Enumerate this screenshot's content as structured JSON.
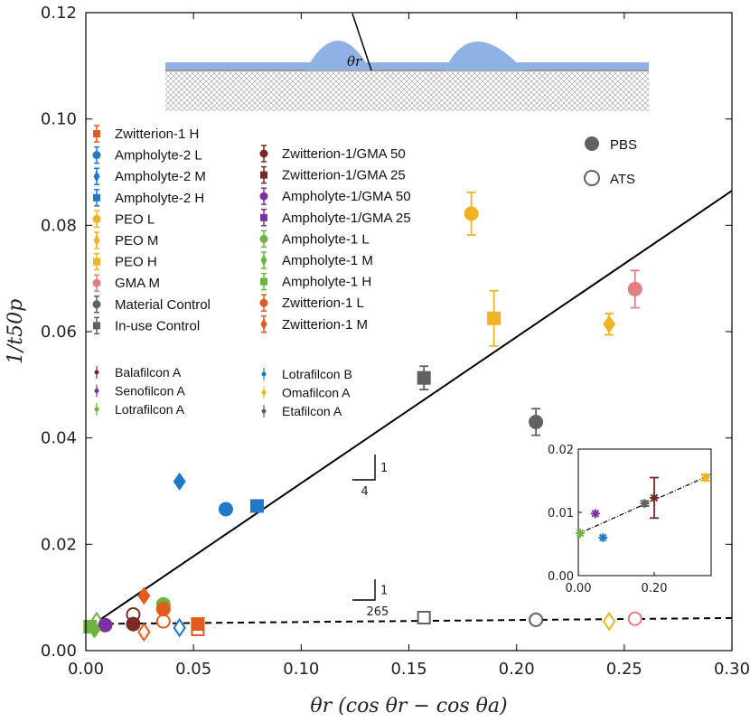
{
  "chart_data": {
    "type": "scatter",
    "xlabel": "θr (cos θr − cos θa)",
    "ylabel": "1/t50p",
    "xlim": [
      0,
      0.3
    ],
    "ylim": [
      0,
      0.12
    ],
    "xticks": [
      "0.00",
      "0.05",
      "0.10",
      "0.15",
      "0.20",
      "0.25",
      "0.30"
    ],
    "yticks": [
      "0.00",
      "0.02",
      "0.04",
      "0.06",
      "0.08",
      "0.10",
      "0.12"
    ],
    "colors": {
      "zwit1": "#e35a1e",
      "ampho2": "#1f78c8",
      "peo": "#f0b323",
      "gma": "#e08080",
      "control": "#616161",
      "zg": "#7a2a24",
      "ag": "#7b2fa1",
      "ampho1": "#6cb33f",
      "bala": "#7a2a24",
      "seno": "#7b2fa1",
      "lotraA": "#6cb33f",
      "lotraB": "#1f78c8",
      "oma": "#f0b323",
      "eta": "#616161"
    },
    "legend_col1": [
      {
        "label": "Zwitterion-1 H",
        "color": "#e35a1e",
        "shape": "square"
      },
      {
        "label": "Ampholyte-2 L",
        "color": "#1f78c8",
        "shape": "circle"
      },
      {
        "label": "Ampholyte-2 M",
        "color": "#1f78c8",
        "shape": "diamond"
      },
      {
        "label": "Ampholyte-2 H",
        "color": "#1f78c8",
        "shape": "square"
      },
      {
        "label": "PEO L",
        "color": "#f0b323",
        "shape": "circle"
      },
      {
        "label": "PEO M",
        "color": "#f0b323",
        "shape": "diamond"
      },
      {
        "label": "PEO H",
        "color": "#f0b323",
        "shape": "square"
      },
      {
        "label": "GMA M",
        "color": "#e08080",
        "shape": "circle"
      },
      {
        "label": "Material Control",
        "color": "#616161",
        "shape": "circle"
      },
      {
        "label": "In-use Control",
        "color": "#616161",
        "shape": "square"
      }
    ],
    "legend_col2": [
      {
        "label": "Zwitterion-1/GMA 50",
        "color": "#7a2a24",
        "shape": "circle"
      },
      {
        "label": "Zwitterion-1/GMA 25",
        "color": "#7a2a24",
        "shape": "square"
      },
      {
        "label": "Ampholyte-1/GMA 50",
        "color": "#7b2fa1",
        "shape": "circle"
      },
      {
        "label": "Ampholyte-1/GMA 25",
        "color": "#7b2fa1",
        "shape": "square"
      },
      {
        "label": "Ampholyte-1 L",
        "color": "#6cb33f",
        "shape": "circle"
      },
      {
        "label": "Ampholyte-1 M",
        "color": "#6cb33f",
        "shape": "diamond"
      },
      {
        "label": "Ampholyte-1 H",
        "color": "#6cb33f",
        "shape": "square"
      },
      {
        "label": "Zwitterion-1 L",
        "color": "#e35a1e",
        "shape": "circle"
      },
      {
        "label": "Zwitterion-1 M",
        "color": "#e35a1e",
        "shape": "diamond"
      }
    ],
    "legend_lenses_col1": [
      {
        "label": "Balafilcon A",
        "color": "#7a2a24"
      },
      {
        "label": "Senofilcon A",
        "color": "#7b2fa1"
      },
      {
        "label": "Lotrafilcon A",
        "color": "#6cb33f"
      }
    ],
    "legend_lenses_col2": [
      {
        "label": "Lotrafilcon B",
        "color": "#1f78c8"
      },
      {
        "label": "Omafilcon A",
        "color": "#f0b323"
      },
      {
        "label": "Etafilcon A",
        "color": "#616161"
      }
    ],
    "medium_legend": [
      {
        "label": "PBS",
        "filled": true
      },
      {
        "label": "ATS",
        "filled": false
      }
    ],
    "pbs_points": [
      {
        "name": "Ampholyte-2 M",
        "x": 0.0435,
        "y": 0.0318,
        "color": "#1f78c8",
        "shape": "diamond"
      },
      {
        "name": "Ampholyte-2 L",
        "x": 0.065,
        "y": 0.0266,
        "color": "#1f78c8",
        "shape": "circle"
      },
      {
        "name": "Ampholyte-2 H",
        "x": 0.0795,
        "y": 0.0272,
        "color": "#1f78c8",
        "shape": "square"
      },
      {
        "name": "In-use Control",
        "x": 0.157,
        "y": 0.0513,
        "err": 0.0022,
        "color": "#616161",
        "shape": "square"
      },
      {
        "name": "PEO L",
        "x": 0.179,
        "y": 0.0822,
        "err": 0.004,
        "color": "#f0b323",
        "shape": "circle"
      },
      {
        "name": "PEO H",
        "x": 0.1895,
        "y": 0.0625,
        "err": 0.0052,
        "color": "#f0b323",
        "shape": "square"
      },
      {
        "name": "Material Control",
        "x": 0.209,
        "y": 0.043,
        "err": 0.0025,
        "color": "#616161",
        "shape": "circle"
      },
      {
        "name": "PEO M",
        "x": 0.243,
        "y": 0.0614,
        "err": 0.002,
        "color": "#f0b323",
        "shape": "diamond"
      },
      {
        "name": "GMA M",
        "x": 0.255,
        "y": 0.068,
        "err": 0.0035,
        "color": "#e08080",
        "shape": "circle"
      },
      {
        "name": "Zwitterion-1 M",
        "x": 0.027,
        "y": 0.0103,
        "color": "#e35a1e",
        "shape": "diamond"
      },
      {
        "name": "Ampholyte-1 L",
        "x": 0.036,
        "y": 0.0087,
        "color": "#6cb33f",
        "shape": "circle"
      },
      {
        "name": "Zwitterion-1 L",
        "x": 0.036,
        "y": 0.0078,
        "color": "#e35a1e",
        "shape": "circle"
      },
      {
        "name": "Zwitterion-1/GMA 50",
        "x": 0.022,
        "y": 0.005,
        "color": "#7a2a24",
        "shape": "circle"
      },
      {
        "name": "Ampholyte-1/GMA 50",
        "x": 0.009,
        "y": 0.0048,
        "color": "#7b2fa1",
        "shape": "circle"
      },
      {
        "name": "Zwitterion-1 H",
        "x": 0.052,
        "y": 0.005,
        "color": "#e35a1e",
        "shape": "square"
      },
      {
        "name": "Ampholyte-1 M",
        "x": 0.004,
        "y": 0.004,
        "color": "#6cb33f",
        "shape": "diamond"
      },
      {
        "name": "Ampholyte-1 H",
        "x": 0.002,
        "y": 0.0045,
        "color": "#6cb33f",
        "shape": "square"
      }
    ],
    "ats_points": [
      {
        "name": "Zwitterion-1/GMA 50",
        "x": 0.022,
        "y": 0.0068,
        "color": "#7a2a24",
        "shape": "circle"
      },
      {
        "name": "Zwitterion-1 L",
        "x": 0.036,
        "y": 0.0055,
        "color": "#e35a1e",
        "shape": "circle"
      },
      {
        "name": "Zwitterion-1 M",
        "x": 0.027,
        "y": 0.0035,
        "color": "#e35a1e",
        "shape": "diamond"
      },
      {
        "name": "Ampholyte-2 M",
        "x": 0.0435,
        "y": 0.0043,
        "color": "#1f78c8",
        "shape": "diamond"
      },
      {
        "name": "Zwitterion-1 H",
        "x": 0.052,
        "y": 0.004,
        "color": "#e35a1e",
        "shape": "square"
      },
      {
        "name": "Ampholyte-1 M",
        "x": 0.005,
        "y": 0.0055,
        "color": "#6cb33f",
        "shape": "diamond"
      },
      {
        "name": "In-use Control",
        "x": 0.157,
        "y": 0.0062,
        "color": "#616161",
        "shape": "square"
      },
      {
        "name": "Material Control",
        "x": 0.209,
        "y": 0.0058,
        "color": "#616161",
        "shape": "circle"
      },
      {
        "name": "PEO M",
        "x": 0.243,
        "y": 0.0055,
        "color": "#f0b323",
        "shape": "diamond"
      },
      {
        "name": "GMA M",
        "x": 0.255,
        "y": 0.006,
        "color": "#e08080",
        "shape": "circle"
      }
    ],
    "fit_pbs": {
      "slope": 0.275,
      "intercept": 0.004,
      "style": "solid"
    },
    "fit_ats": {
      "slope": 0.00377,
      "intercept": 0.005,
      "style": "dashed"
    },
    "slope_label_pbs": {
      "rise": "1",
      "run": "4"
    },
    "slope_label_ats": {
      "rise": "1",
      "run": "265"
    },
    "inset": {
      "xlim": [
        0,
        0.35
      ],
      "ylim": [
        0,
        0.02
      ],
      "xticks": [
        "0.00",
        "0.20"
      ],
      "yticks": [
        "0.00",
        "0.01",
        "0.02"
      ],
      "points": [
        {
          "name": "Lotrafilcon A",
          "x": 0.005,
          "y": 0.0067,
          "color": "#6cb33f"
        },
        {
          "name": "Senofilcon A",
          "x": 0.045,
          "y": 0.0098,
          "color": "#7b2fa1"
        },
        {
          "name": "Lotrafilcon B",
          "x": 0.065,
          "y": 0.006,
          "color": "#1f78c8"
        },
        {
          "name": "Etafilcon A",
          "x": 0.175,
          "y": 0.0114,
          "err": 0.0004,
          "color": "#616161"
        },
        {
          "name": "Balafilcon A",
          "x": 0.2,
          "y": 0.0123,
          "err": 0.0032,
          "color": "#7a2a24"
        },
        {
          "name": "Omafilcon A",
          "x": 0.335,
          "y": 0.0155,
          "err": 0.0005,
          "color": "#f0b323"
        }
      ],
      "fit": {
        "slope": 0.0268,
        "intercept": 0.0066
      }
    },
    "schematic_label": "θr"
  }
}
